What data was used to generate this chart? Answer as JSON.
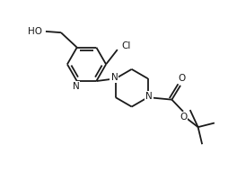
{
  "bg_color": "#ffffff",
  "line_color": "#1a1a1a",
  "line_width": 1.3,
  "font_size": 7.5,
  "figsize": [
    2.54,
    1.91
  ],
  "dpi": 100,
  "xlim": [
    0.0,
    10.0
  ],
  "ylim": [
    0.0,
    7.5
  ]
}
